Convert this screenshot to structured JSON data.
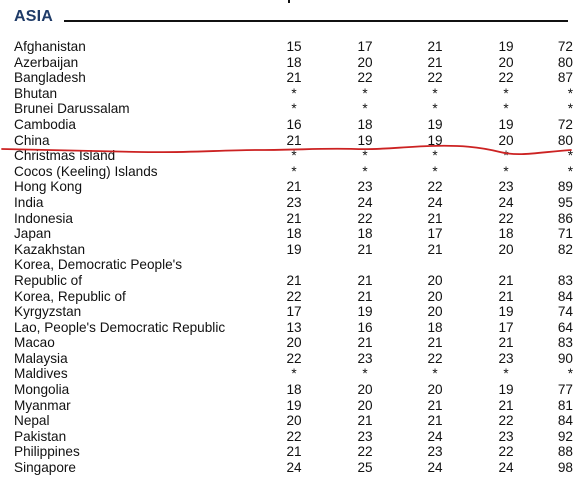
{
  "section": {
    "title": "ASIA"
  },
  "annotation_color": "#cc2222",
  "heading_color": "#1f3b68",
  "rows": [
    {
      "name": "Afghanistan",
      "values": [
        "15",
        "17",
        "21",
        "19",
        "72"
      ]
    },
    {
      "name": "Azerbaijan",
      "values": [
        "18",
        "20",
        "21",
        "20",
        "80"
      ]
    },
    {
      "name": "Bangladesh",
      "values": [
        "21",
        "22",
        "22",
        "22",
        "87"
      ]
    },
    {
      "name": "Bhutan",
      "values": [
        "*",
        "*",
        "*",
        "*",
        "*"
      ]
    },
    {
      "name": "Brunei Darussalam",
      "values": [
        "*",
        "*",
        "*",
        "*",
        "*"
      ]
    },
    {
      "name": "Cambodia",
      "values": [
        "16",
        "18",
        "19",
        "19",
        "72"
      ]
    },
    {
      "name": "China",
      "values": [
        "21",
        "19",
        "19",
        "20",
        "80"
      ]
    },
    {
      "name": "Christmas Island",
      "values": [
        "*",
        "*",
        "*",
        "*",
        "*"
      ]
    },
    {
      "name": "Cocos (Keeling) Islands",
      "values": [
        "*",
        "*",
        "*",
        "*",
        "*"
      ]
    },
    {
      "name": "Hong Kong",
      "values": [
        "21",
        "23",
        "22",
        "23",
        "89"
      ]
    },
    {
      "name": "India",
      "values": [
        "23",
        "24",
        "24",
        "24",
        "95"
      ]
    },
    {
      "name": "Indonesia",
      "values": [
        "21",
        "22",
        "21",
        "22",
        "86"
      ]
    },
    {
      "name": "Japan",
      "values": [
        "18",
        "18",
        "17",
        "18",
        "71"
      ]
    },
    {
      "name": "Kazakhstan",
      "values": [
        "19",
        "21",
        "21",
        "20",
        "82"
      ]
    },
    {
      "name": "Korea, Democratic People's",
      "values": [
        "",
        "",
        "",
        "",
        ""
      ]
    },
    {
      "name": "Republic of",
      "values": [
        "21",
        "21",
        "20",
        "21",
        "83"
      ]
    },
    {
      "name": "Korea, Republic of",
      "values": [
        "22",
        "21",
        "20",
        "21",
        "84"
      ]
    },
    {
      "name": "Kyrgyzstan",
      "values": [
        "17",
        "19",
        "20",
        "19",
        "74"
      ]
    },
    {
      "name": "Lao, People's Democratic Republic",
      "values": [
        "13",
        "16",
        "18",
        "17",
        "64"
      ]
    },
    {
      "name": "Macao",
      "values": [
        "20",
        "21",
        "21",
        "21",
        "83"
      ]
    },
    {
      "name": "Malaysia",
      "values": [
        "22",
        "23",
        "22",
        "23",
        "90"
      ]
    },
    {
      "name": "Maldives",
      "values": [
        "*",
        "*",
        "*",
        "*",
        "*"
      ]
    },
    {
      "name": "Mongolia",
      "values": [
        "18",
        "20",
        "20",
        "19",
        "77"
      ]
    },
    {
      "name": "Myanmar",
      "values": [
        "19",
        "20",
        "21",
        "21",
        "81"
      ]
    },
    {
      "name": "Nepal",
      "values": [
        "20",
        "21",
        "21",
        "22",
        "84"
      ]
    },
    {
      "name": "Pakistan",
      "values": [
        "22",
        "23",
        "24",
        "23",
        "92"
      ]
    },
    {
      "name": "Philippines",
      "values": [
        "21",
        "22",
        "23",
        "22",
        "88"
      ]
    },
    {
      "name": "Singapore",
      "values": [
        "24",
        "25",
        "24",
        "24",
        "98"
      ]
    }
  ]
}
